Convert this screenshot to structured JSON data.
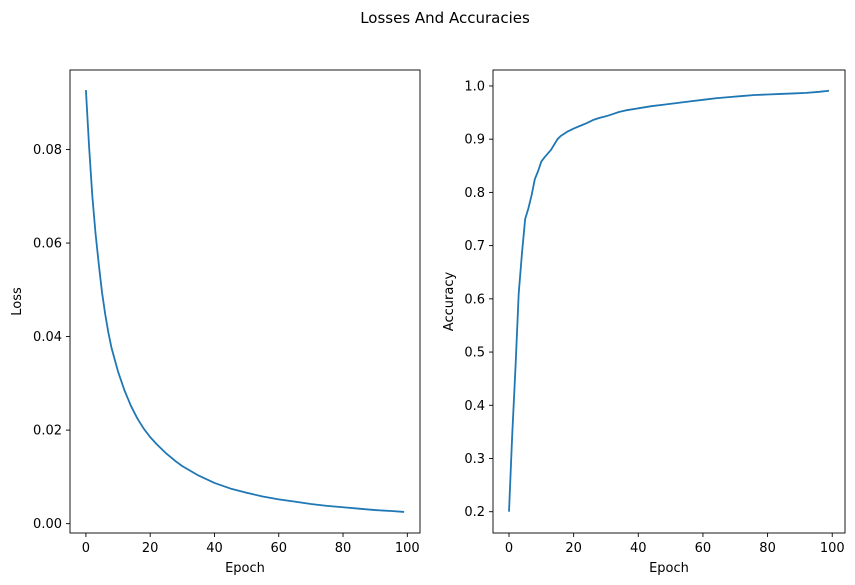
{
  "figure": {
    "suptitle": "Losses And Accuracies"
  },
  "chart_data": [
    {
      "type": "line",
      "title": "",
      "xlabel": "Epoch",
      "ylabel": "Loss",
      "xlim": [
        -4.95,
        103.95
      ],
      "ylim": [
        -0.002,
        0.097
      ],
      "xticks": [
        0,
        20,
        40,
        60,
        80,
        100
      ],
      "yticks": [
        0.0,
        0.02,
        0.04,
        0.06,
        0.08
      ],
      "ytick_labels": [
        "0.00",
        "0.02",
        "0.04",
        "0.06",
        "0.08"
      ],
      "grid": false,
      "line_color": "#1f77b4",
      "x": [
        0,
        1,
        2,
        3,
        4,
        5,
        6,
        7,
        8,
        10,
        12,
        14,
        16,
        18,
        20,
        22,
        25,
        28,
        30,
        35,
        40,
        45,
        50,
        55,
        60,
        65,
        70,
        75,
        80,
        85,
        90,
        95,
        99
      ],
      "series": [
        {
          "values": [
            0.0927,
            0.0805,
            0.07,
            0.062,
            0.0555,
            0.0495,
            0.0448,
            0.0408,
            0.0375,
            0.0325,
            0.0285,
            0.0252,
            0.0225,
            0.0203,
            0.0185,
            0.017,
            0.015,
            0.0133,
            0.0123,
            0.0103,
            0.0087,
            0.0075,
            0.0066,
            0.0058,
            0.0052,
            0.0047,
            0.0042,
            0.0038,
            0.0035,
            0.0032,
            0.0029,
            0.0027,
            0.0025
          ]
        }
      ]
    },
    {
      "type": "line",
      "title": "",
      "xlabel": "Epoch",
      "ylabel": "Accuracy",
      "xlim": [
        -4.95,
        103.95
      ],
      "ylim": [
        0.16,
        1.03
      ],
      "xticks": [
        0,
        20,
        40,
        60,
        80,
        100
      ],
      "yticks": [
        0.2,
        0.3,
        0.4,
        0.5,
        0.6,
        0.7,
        0.8,
        0.9,
        1.0
      ],
      "ytick_labels": [
        "0.2",
        "0.3",
        "0.4",
        "0.5",
        "0.6",
        "0.7",
        "0.8",
        "0.9",
        "1.0"
      ],
      "grid": false,
      "line_color": "#1f77b4",
      "x": [
        0,
        1,
        2,
        3,
        4,
        5,
        6,
        7,
        8,
        9,
        10,
        11,
        12,
        13,
        14,
        15,
        16,
        17,
        18,
        19,
        20,
        22,
        24,
        26,
        28,
        30,
        32,
        34,
        36,
        40,
        44,
        48,
        52,
        56,
        60,
        64,
        68,
        72,
        76,
        80,
        84,
        88,
        92,
        96,
        99
      ],
      "series": [
        {
          "values": [
            0.2,
            0.345,
            0.47,
            0.61,
            0.685,
            0.75,
            0.77,
            0.795,
            0.825,
            0.84,
            0.858,
            0.866,
            0.873,
            0.88,
            0.89,
            0.9,
            0.906,
            0.91,
            0.914,
            0.917,
            0.92,
            0.925,
            0.93,
            0.936,
            0.94,
            0.943,
            0.947,
            0.951,
            0.954,
            0.958,
            0.962,
            0.965,
            0.968,
            0.971,
            0.974,
            0.977,
            0.979,
            0.981,
            0.983,
            0.984,
            0.985,
            0.986,
            0.987,
            0.989,
            0.991
          ]
        }
      ]
    }
  ]
}
